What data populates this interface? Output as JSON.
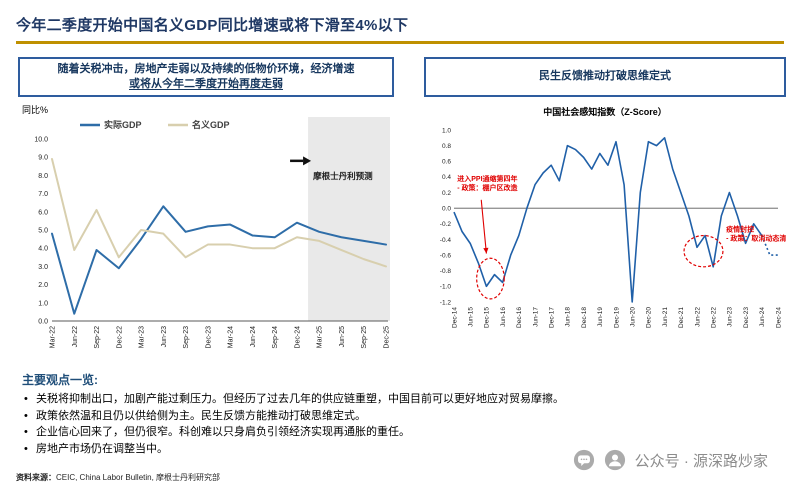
{
  "header": {
    "title": "今年二季度开始中国名义GDP同比增速或将下滑至4%以下",
    "rule_color": "#BF9000"
  },
  "left_panel": {
    "box_line1": "随着关税冲击，房地产走弱以及持续的低物价环境，经济增速",
    "box_line2": "或将从今年二季度开始再度走弱"
  },
  "right_panel": {
    "box_text": "民生反馈推动打破思维定式"
  },
  "key_points": {
    "title": "主要观点一览:",
    "bullets": [
      "关税将抑制出口，加剧产能过剩压力。但经历了过去几年的供应链重塑，中国目前可以更好地应对贸易摩擦。",
      "政策依然温和且仍以供给侧为主。民生反馈方能推动打破思维定式。",
      "企业信心回来了，但仍很窄。科创难以只身肩负引领经济实现再通胀的重任。",
      "房地产市场仍在调整当中。"
    ]
  },
  "footer": {
    "source_label": "资料来源：",
    "source_text": "CEIC, China Labor Bulletin, 摩根士丹利研究部",
    "watermark": "公众号 · 源深路炒家"
  },
  "chart_data": [
    {
      "type": "line",
      "title": "",
      "ylabel": "同比%",
      "ylim": [
        0,
        10
      ],
      "ytick_step": 1,
      "categories": [
        "Mar-22",
        "Jun-22",
        "Sep-22",
        "Dec-22",
        "Mar-23",
        "Jun-23",
        "Sep-23",
        "Dec-23",
        "Mar-24",
        "Jun-24",
        "Sep-24",
        "Dec-24",
        "Mar-25",
        "Jun-25",
        "Sep-25",
        "Dec-25"
      ],
      "series": [
        {
          "name": "实际GDP",
          "color": "#2E6DA8",
          "values": [
            4.8,
            0.4,
            3.9,
            2.9,
            4.5,
            6.3,
            4.9,
            5.2,
            5.3,
            4.7,
            4.6,
            5.4,
            4.9,
            4.6,
            4.4,
            4.2
          ]
        },
        {
          "name": "名义GDP",
          "color": "#D8CFAE",
          "values": [
            8.9,
            3.9,
            6.1,
            3.5,
            5.0,
            4.8,
            3.5,
            4.2,
            4.2,
            4.0,
            4.0,
            4.6,
            4.4,
            3.9,
            3.4,
            3.0
          ]
        }
      ],
      "forecast": {
        "start_index": 11.5,
        "label": "摩根士丹利预测",
        "band_color": "#E9E9E9"
      },
      "legend_position": "top-left"
    },
    {
      "type": "line",
      "title": "中国社会感知指数（Z-Score）",
      "ylim": [
        -1.2,
        1.0
      ],
      "ytick_step": 0.2,
      "x_tick_labels": [
        "Dec-14",
        "Jun-15",
        "Dec-15",
        "Jun-16",
        "Dec-16",
        "Jun-17",
        "Dec-17",
        "Jun-18",
        "Dec-18",
        "Jun-19",
        "Dec-19",
        "Jun-20",
        "Dec-20",
        "Jun-21",
        "Dec-21",
        "Jun-22",
        "Dec-22",
        "Jun-23",
        "Dec-23",
        "Jun-24",
        "Dec-24"
      ],
      "values": [
        -0.05,
        -0.3,
        -0.45,
        -0.7,
        -1.0,
        -0.85,
        -0.95,
        -0.6,
        -0.35,
        0.0,
        0.3,
        0.45,
        0.55,
        0.35,
        0.8,
        0.75,
        0.65,
        0.5,
        0.7,
        0.55,
        0.85,
        0.3,
        -1.2,
        0.2,
        0.85,
        0.8,
        0.9,
        0.5,
        0.2,
        -0.1,
        -0.5,
        -0.35,
        -0.75,
        -0.1,
        0.2,
        -0.1,
        -0.45,
        -0.2,
        -0.35,
        -0.6,
        -0.6
      ],
      "color": "#2060A8",
      "dotted_tail": 3,
      "annotation_color": "#E00000",
      "annotations": [
        {
          "lines": [
            "进入PPI通缩第四年",
            "- 政策：棚户区改造"
          ],
          "x_index": 0.4,
          "y_value": 0.35,
          "arrow_to": {
            "x_index": 4,
            "y_value": -0.58
          }
        },
        {
          "lines": [
            "疫情封控",
            "- 政策：取消动态清零"
          ],
          "x_index": 33.6,
          "y_value": -0.3
        }
      ],
      "ellipses": [
        {
          "x_index": 4.5,
          "y_value": -0.9,
          "rx_index": 1.7,
          "ry_value": 0.26
        },
        {
          "x_index": 30.8,
          "y_value": -0.55,
          "rx_index": 2.4,
          "ry_value": 0.2
        }
      ]
    }
  ]
}
